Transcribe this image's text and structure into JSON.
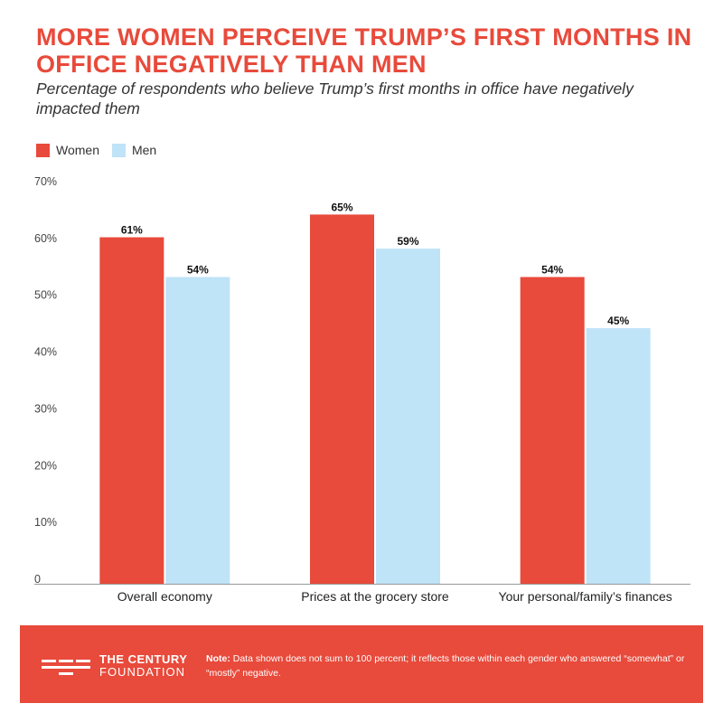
{
  "header": {
    "title": "More women perceive Trump’s first months in office negatively than men",
    "subtitle": "Percentage of respondents who believe Trump’s first months in office have negatively impacted them"
  },
  "legend": {
    "women_label": "Women",
    "men_label": "Men"
  },
  "colors": {
    "women": "#e84a3b",
    "men": "#bfe3f7",
    "accent": "#e84a3b",
    "axis": "#999999"
  },
  "chart_data": {
    "type": "bar",
    "title": "More women perceive Trump’s first months in office negatively than men",
    "xlabel": "",
    "ylabel": "",
    "ylim": [
      0,
      70
    ],
    "yticks": [
      0,
      10,
      20,
      30,
      40,
      50,
      60,
      70
    ],
    "ytick_labels": [
      "0",
      "10%",
      "20%",
      "30%",
      "40%",
      "50%",
      "60%",
      "70%"
    ],
    "categories": [
      "Overall economy",
      "Prices at the grocery store",
      "Your personal/family’s finances"
    ],
    "series": [
      {
        "name": "Women",
        "values": [
          61,
          65,
          54
        ],
        "labels": [
          "61%",
          "65%",
          "54%"
        ]
      },
      {
        "name": "Men",
        "values": [
          54,
          59,
          45
        ],
        "labels": [
          "54%",
          "59%",
          "45%"
        ]
      }
    ],
    "legend_position": "top-left",
    "grid": false
  },
  "footer": {
    "logo_line1": "THE CENTURY",
    "logo_line2": "FOUNDATION",
    "note_label": "Note:",
    "note_text": " Data shown does not sum to 100 percent; it reflects those within each gender who answered “somewhat” or “mostly” negative."
  }
}
